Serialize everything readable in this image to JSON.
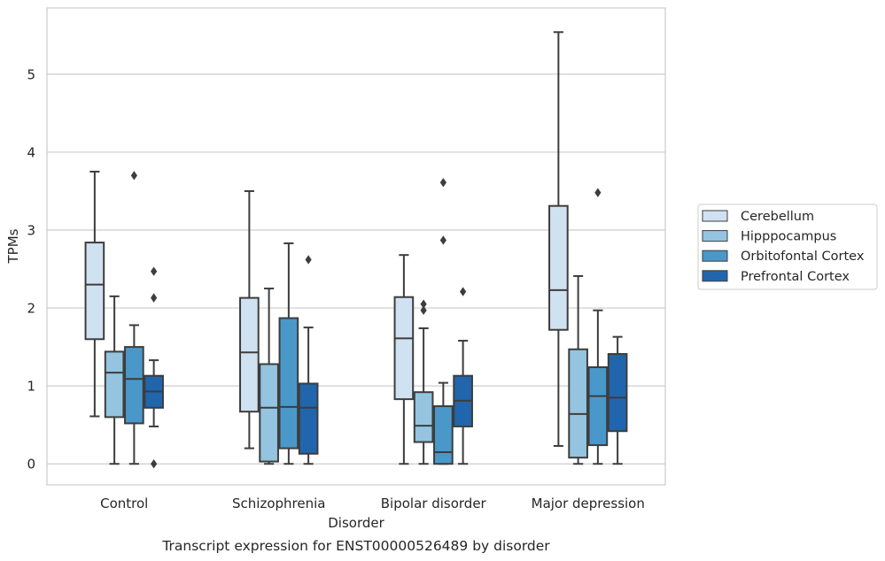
{
  "chart_data": {
    "type": "box",
    "xlabel": "Disorder",
    "ylabel": "TPMs",
    "caption": "Transcript expression for ENST00000526489 by disorder",
    "ylim": [
      -0.27,
      5.85
    ],
    "yticks": [
      0,
      1,
      2,
      3,
      4,
      5
    ],
    "grid": "horizontal",
    "legend_placement": "right, outside plot",
    "categories": [
      "Control",
      "Schizophrenia",
      "Bipolar disorder",
      "Major depression"
    ],
    "series": [
      {
        "name": "Cerebellum",
        "color": "#d0e1f2",
        "boxes": [
          {
            "whisker_low": 0.61,
            "q1": 1.6,
            "median": 2.3,
            "q3": 2.84,
            "whisker_high": 3.75,
            "outliers": []
          },
          {
            "whisker_low": 0.2,
            "q1": 0.67,
            "median": 1.43,
            "q3": 2.13,
            "whisker_high": 3.5,
            "outliers": []
          },
          {
            "whisker_low": 0.0,
            "q1": 0.83,
            "median": 1.61,
            "q3": 2.14,
            "whisker_high": 2.68,
            "outliers": []
          },
          {
            "whisker_low": 0.23,
            "q1": 1.72,
            "median": 2.23,
            "q3": 3.31,
            "whisker_high": 5.54,
            "outliers": []
          }
        ]
      },
      {
        "name": "Hipppocampus",
        "color": "#94c4df",
        "boxes": [
          {
            "whisker_low": 0.0,
            "q1": 0.6,
            "median": 1.17,
            "q3": 1.44,
            "whisker_high": 2.15,
            "outliers": []
          },
          {
            "whisker_low": 0.0,
            "q1": 0.03,
            "median": 0.72,
            "q3": 1.28,
            "whisker_high": 2.25,
            "outliers": []
          },
          {
            "whisker_low": 0.0,
            "q1": 0.28,
            "median": 0.49,
            "q3": 0.92,
            "whisker_high": 1.74,
            "outliers": [
              1.97,
              2.05
            ]
          },
          {
            "whisker_low": 0.0,
            "q1": 0.08,
            "median": 0.64,
            "q3": 1.47,
            "whisker_high": 2.41,
            "outliers": []
          }
        ]
      },
      {
        "name": "Orbitofontal Cortex",
        "color": "#4a98c9",
        "boxes": [
          {
            "whisker_low": 0.0,
            "q1": 0.52,
            "median": 1.09,
            "q3": 1.5,
            "whisker_high": 1.78,
            "outliers": [
              3.7
            ]
          },
          {
            "whisker_low": 0.0,
            "q1": 0.2,
            "median": 0.73,
            "q3": 1.87,
            "whisker_high": 2.83,
            "outliers": []
          },
          {
            "whisker_low": 0.0,
            "q1": 0.0,
            "median": 0.15,
            "q3": 0.74,
            "whisker_high": 1.04,
            "outliers": [
              2.87,
              3.61
            ]
          },
          {
            "whisker_low": 0.0,
            "q1": 0.24,
            "median": 0.87,
            "q3": 1.24,
            "whisker_high": 1.97,
            "outliers": [
              3.48
            ]
          }
        ]
      },
      {
        "name": "Prefrontal Cortex",
        "color": "#2166ac",
        "boxes": [
          {
            "whisker_low": 0.48,
            "q1": 0.72,
            "median": 0.93,
            "q3": 1.13,
            "whisker_high": 1.33,
            "outliers": [
              0.0,
              2.13,
              2.47
            ]
          },
          {
            "whisker_low": 0.0,
            "q1": 0.13,
            "median": 0.72,
            "q3": 1.03,
            "whisker_high": 1.75,
            "outliers": [
              2.62
            ]
          },
          {
            "whisker_low": 0.0,
            "q1": 0.48,
            "median": 0.81,
            "q3": 1.13,
            "whisker_high": 1.58,
            "outliers": [
              2.21
            ]
          },
          {
            "whisker_low": 0.0,
            "q1": 0.42,
            "median": 0.85,
            "q3": 1.41,
            "whisker_high": 1.63,
            "outliers": []
          }
        ]
      }
    ]
  }
}
